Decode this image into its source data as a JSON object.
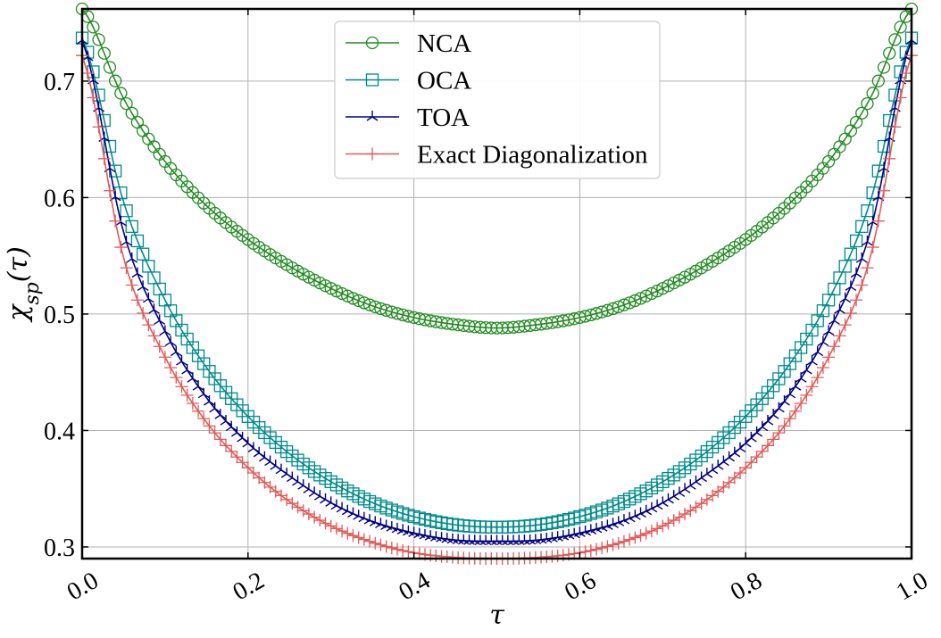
{
  "chart_data": {
    "type": "line",
    "xlabel": "τ",
    "ylabel": "χ_sp(τ)",
    "xlim": [
      0.0,
      1.0
    ],
    "ylim": [
      0.29,
      0.762
    ],
    "x_ticks": [
      0.0,
      0.2,
      0.4,
      0.6,
      0.8,
      1.0
    ],
    "x_tick_labels": [
      "0.0",
      "0.2",
      "0.4",
      "0.6",
      "0.8",
      "1.0"
    ],
    "y_ticks": [
      0.3,
      0.4,
      0.5,
      0.6,
      0.7
    ],
    "y_tick_labels": [
      "0.3",
      "0.4",
      "0.5",
      "0.6",
      "0.7"
    ],
    "grid": true,
    "legend_position": "upper-center",
    "x": [
      0.0,
      0.05,
      0.1,
      0.15,
      0.2,
      0.25,
      0.3,
      0.35,
      0.4,
      0.45,
      0.5,
      0.55,
      0.6,
      0.65,
      0.7,
      0.75,
      0.8,
      0.85,
      0.9,
      0.95,
      1.0
    ],
    "series": [
      {
        "name": "NCA",
        "color": "#228b22",
        "marker": "circle",
        "values": [
          0.762,
          0.685,
          0.631,
          0.593,
          0.564,
          0.541,
          0.522,
          0.507,
          0.497,
          0.491,
          0.488,
          0.491,
          0.497,
          0.507,
          0.522,
          0.541,
          0.564,
          0.593,
          0.631,
          0.685,
          0.762
        ]
      },
      {
        "name": "OCA",
        "color": "#008b8b",
        "marker": "square",
        "values": [
          0.737,
          0.596,
          0.512,
          0.454,
          0.412,
          0.38,
          0.356,
          0.338,
          0.326,
          0.319,
          0.317,
          0.319,
          0.326,
          0.338,
          0.356,
          0.38,
          0.412,
          0.454,
          0.512,
          0.596,
          0.737
        ]
      },
      {
        "name": "TOA",
        "color": "#000080",
        "marker": "tri_up",
        "values": [
          0.735,
          0.57,
          0.485,
          0.428,
          0.389,
          0.361,
          0.338,
          0.322,
          0.312,
          0.306,
          0.305,
          0.306,
          0.312,
          0.322,
          0.338,
          0.361,
          0.389,
          0.428,
          0.485,
          0.57,
          0.735
        ]
      },
      {
        "name": "Exact Diagonalization",
        "color": "#e05a5a",
        "marker": "plus",
        "values": [
          0.722,
          0.548,
          0.463,
          0.407,
          0.368,
          0.339,
          0.318,
          0.304,
          0.295,
          0.291,
          0.29,
          0.291,
          0.295,
          0.304,
          0.318,
          0.339,
          0.368,
          0.407,
          0.463,
          0.548,
          0.722
        ]
      }
    ]
  }
}
